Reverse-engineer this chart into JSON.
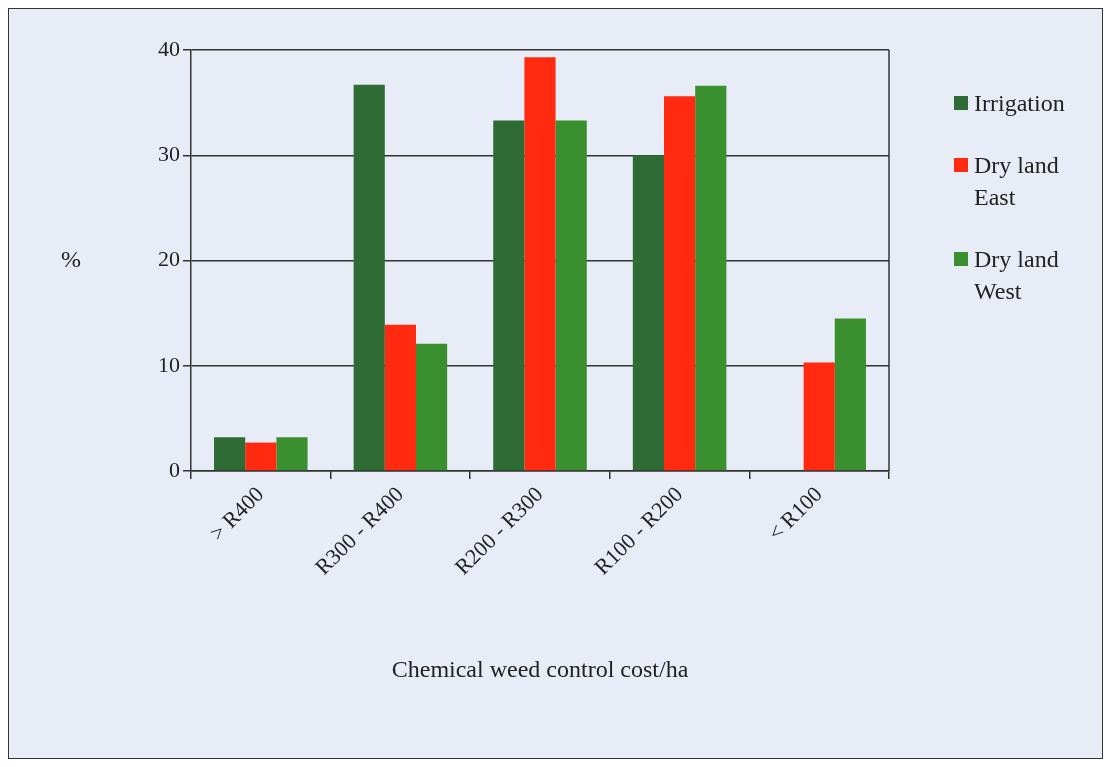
{
  "chart_data": {
    "type": "bar",
    "xlabel": "Chemical weed control cost/ha",
    "ylabel": "%",
    "categories": [
      "> R400",
      "R300 - R400",
      "R200 - R300",
      "R100 - R200",
      "< R100"
    ],
    "series": [
      {
        "name": "Irrigation",
        "color": "#2e6b35",
        "values": [
          3.2,
          36.7,
          33.3,
          30.0,
          0
        ]
      },
      {
        "name": "Dry land East",
        "color": "#ff2a10",
        "values": [
          2.7,
          13.9,
          39.3,
          35.6,
          10.3
        ]
      },
      {
        "name": "Dry land West",
        "color": "#3a8f2e",
        "values": [
          3.2,
          12.1,
          33.3,
          36.6,
          14.5
        ]
      }
    ],
    "ylim": [
      0,
      40
    ],
    "yticks": [
      0,
      10,
      20,
      30,
      40
    ],
    "grid": "y",
    "legend": "right"
  }
}
